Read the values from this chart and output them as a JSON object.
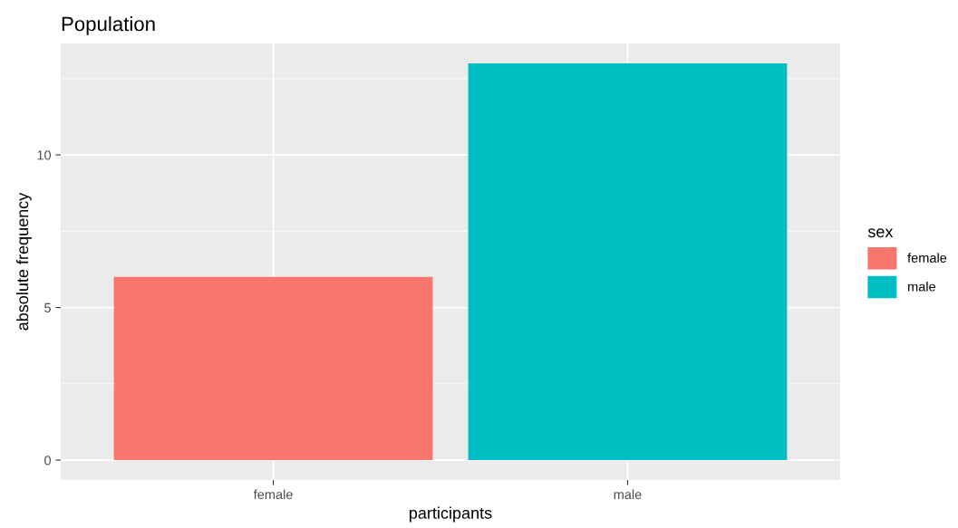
{
  "chart_data": {
    "type": "bar",
    "title": "Population",
    "xlabel": "participants",
    "ylabel": "absolute frequency",
    "legend_title": "sex",
    "legend": "right",
    "categories": [
      "female",
      "male"
    ],
    "series": [
      {
        "name": "female",
        "color": "#f8766d",
        "values": [
          6,
          null
        ]
      },
      {
        "name": "male",
        "color": "#00bfc4",
        "values": [
          null,
          13
        ]
      }
    ],
    "ylim": [
      -0.65,
      13.65
    ],
    "yticks": [
      0,
      5,
      10
    ],
    "grid": true
  }
}
